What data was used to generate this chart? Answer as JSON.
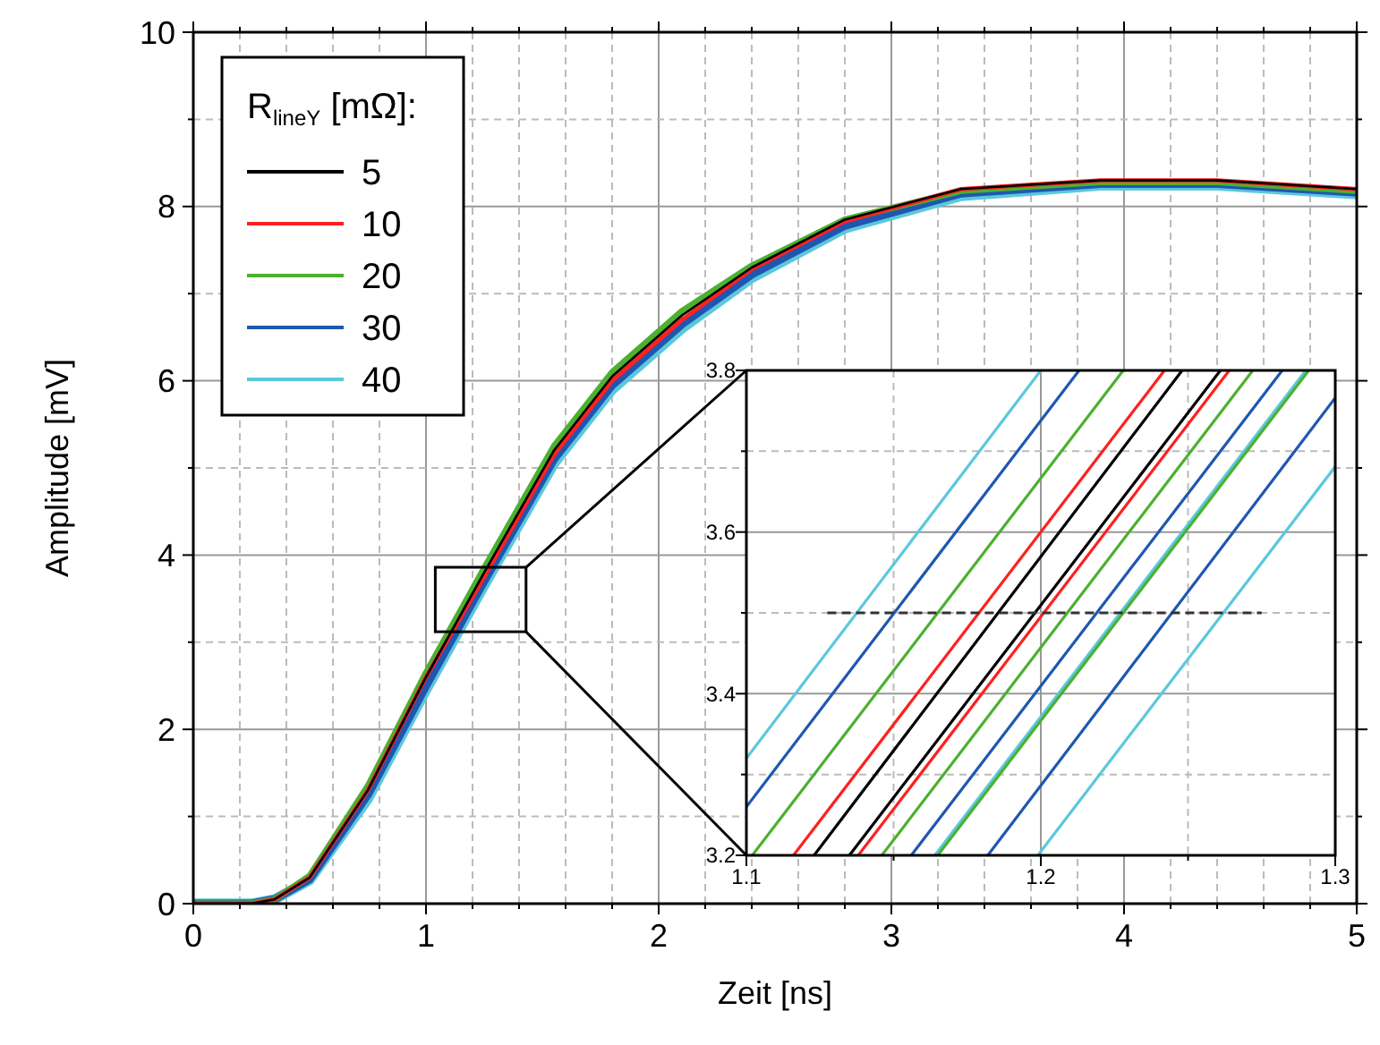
{
  "chart_data": [
    {
      "type": "line",
      "xlabel": "Zeit [ns]",
      "ylabel": "Amplitude  [mV]",
      "legend_title": "R$_{lineY}$ [mΩ]:",
      "legend": "top left",
      "grid": true,
      "xlim": [
        0,
        5
      ],
      "ylim": [
        0,
        10
      ],
      "xticks": [
        0,
        {
          "value": 0.2,
          "label": null
        },
        {
          "value": 0.4,
          "label": null
        },
        {
          "value": 0.6,
          "label": null
        },
        {
          "value": 0.8,
          "label": null
        },
        1,
        {
          "value": 1.2,
          "label": null
        },
        {
          "value": 1.4,
          "label": null
        },
        {
          "value": 1.6,
          "label": null
        },
        {
          "value": 1.8,
          "label": null
        },
        2,
        {
          "value": 2.2,
          "label": null
        },
        {
          "value": 2.4,
          "label": null
        },
        {
          "value": 2.6,
          "label": null
        },
        {
          "value": 2.8,
          "label": null
        },
        3,
        {
          "value": 3.2,
          "label": null
        },
        {
          "value": 3.4,
          "label": null
        },
        {
          "value": 3.6,
          "label": null
        },
        {
          "value": 3.8,
          "label": null
        },
        4,
        {
          "value": 4.2,
          "label": null
        },
        {
          "value": 4.4,
          "label": null
        },
        {
          "value": 4.6,
          "label": null
        },
        {
          "value": 4.8,
          "label": null
        },
        5
      ],
      "yticks": [
        0,
        {
          "value": 1,
          "label": null
        },
        2,
        {
          "value": 3,
          "label": null
        },
        4,
        {
          "value": 5,
          "label": null
        },
        6,
        {
          "value": 7,
          "label": null
        },
        8,
        {
          "value": 9,
          "label": null
        },
        10
      ],
      "x": [
        0,
        0.25,
        0.35,
        0.5,
        0.75,
        1.0,
        1.25,
        1.55,
        1.8,
        2.1,
        2.4,
        2.8,
        3.3,
        3.9,
        4.4,
        5
      ],
      "series": [
        {
          "name": "5",
          "color": "#000000",
          "values": [
            0,
            0,
            0.05,
            0.3,
            1.3,
            2.6,
            3.8,
            5.2,
            6.05,
            6.75,
            7.3,
            7.85,
            8.2,
            8.3,
            8.3,
            8.2
          ]
        },
        {
          "name": "10",
          "color": "#ff2020",
          "values": [
            0,
            0,
            0.05,
            0.3,
            1.3,
            2.6,
            3.75,
            5.15,
            6.0,
            6.7,
            7.28,
            7.83,
            8.2,
            8.3,
            8.3,
            8.2
          ]
        },
        {
          "name": "20",
          "color": "#4cb030",
          "values": [
            0,
            0,
            0.05,
            0.32,
            1.35,
            2.65,
            3.85,
            5.25,
            6.1,
            6.8,
            7.32,
            7.85,
            8.18,
            8.28,
            8.28,
            8.18
          ]
        },
        {
          "name": "30",
          "color": "#1f57b0",
          "values": [
            0,
            0,
            0.05,
            0.28,
            1.25,
            2.5,
            3.7,
            5.1,
            5.95,
            6.65,
            7.22,
            7.78,
            8.15,
            8.26,
            8.26,
            8.16
          ]
        },
        {
          "name": "40",
          "color": "#5bc8dc",
          "values": [
            0,
            0,
            0.05,
            0.27,
            1.2,
            2.45,
            3.65,
            5.05,
            5.9,
            6.6,
            7.18,
            7.75,
            8.12,
            8.24,
            8.24,
            8.14
          ]
        }
      ]
    },
    {
      "type": "line",
      "grid": true,
      "xlim": [
        1.1,
        1.3
      ],
      "ylim": [
        3.2,
        3.8
      ],
      "xticks": [
        {
          "value": 1.1,
          "label": "1.1"
        },
        {
          "value": 1.15,
          "label": null
        },
        {
          "value": 1.2,
          "label": "1.2"
        },
        {
          "value": 1.25,
          "label": null
        },
        {
          "value": 1.3,
          "label": "1.3"
        }
      ],
      "yticks": [
        {
          "value": 3.2,
          "label": "3.2"
        },
        {
          "value": 3.3,
          "label": null
        },
        {
          "value": 3.4,
          "label": "3.4"
        },
        {
          "value": 3.5,
          "label": null
        },
        {
          "value": 3.6,
          "label": "3.6"
        },
        {
          "value": 3.7,
          "label": null
        },
        {
          "value": 3.8,
          "label": "3.8"
        }
      ],
      "series": [
        {
          "color": "#5bc8dc",
          "x": [
            1.1,
            1.2
          ],
          "values": [
            3.32,
            3.8
          ]
        },
        {
          "color": "#1f57b0",
          "x": [
            1.1,
            1.213
          ],
          "values": [
            3.26,
            3.8
          ]
        },
        {
          "color": "#4cb030",
          "x": [
            1.102,
            1.228
          ],
          "values": [
            3.2,
            3.8
          ]
        },
        {
          "color": "#ff2020",
          "x": [
            1.116,
            1.242
          ],
          "values": [
            3.2,
            3.8
          ]
        },
        {
          "color": "#000000",
          "x": [
            1.123,
            1.248
          ],
          "values": [
            3.2,
            3.8
          ]
        },
        {
          "color": "#000000",
          "x": [
            1.135,
            1.261
          ],
          "values": [
            3.2,
            3.8
          ]
        },
        {
          "color": "#ff2020",
          "x": [
            1.138,
            1.264
          ],
          "values": [
            3.2,
            3.8
          ]
        },
        {
          "color": "#4cb030",
          "x": [
            1.146,
            1.272
          ],
          "values": [
            3.2,
            3.8
          ]
        },
        {
          "color": "#1f57b0",
          "x": [
            1.156,
            1.282
          ],
          "values": [
            3.2,
            3.8
          ]
        },
        {
          "color": "#5bc8dc",
          "x": [
            1.164,
            1.29
          ],
          "values": [
            3.2,
            3.8
          ]
        },
        {
          "color": "#4cb030",
          "x": [
            1.165,
            1.291
          ],
          "values": [
            3.2,
            3.8
          ]
        },
        {
          "color": "#1f57b0",
          "x": [
            1.182,
            1.3
          ],
          "values": [
            3.2,
            3.766
          ]
        },
        {
          "color": "#5bc8dc",
          "x": [
            1.199,
            1.3
          ],
          "values": [
            3.2,
            3.681
          ]
        },
        {
          "color": "#333333",
          "line_style": "dashed",
          "x": [
            1.1275,
            1.275
          ],
          "values": [
            3.5,
            3.5
          ]
        }
      ]
    }
  ]
}
